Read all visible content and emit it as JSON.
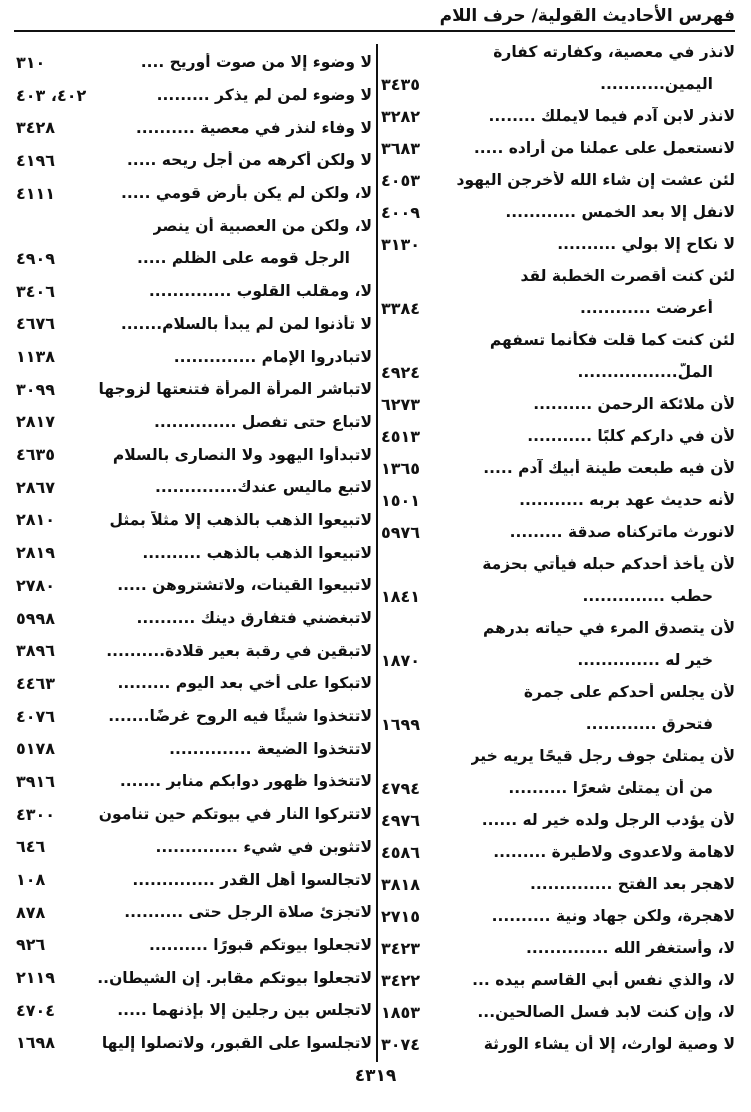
{
  "header": {
    "title": "فهرس الأحاديث القولية/ حرف اللام"
  },
  "right_column": [
    {
      "text": "لانذر في معصية، وكفارته كفارة",
      "num": ""
    },
    {
      "text": "اليمين...........",
      "num": "٣٤٣٥",
      "cont": true
    },
    {
      "text": "لانذر لابن آدم فيما لايملك ........",
      "num": "٣٢٨٢"
    },
    {
      "text": "لانستعمل على عملنا من أراده .....",
      "num": "٣٦٨٣"
    },
    {
      "text": "لئن عشت إن شاء الله لأخرجن اليهود",
      "num": "٤٠٥٣"
    },
    {
      "text": "لانفل إلا بعد الخمس ............",
      "num": "٤٠٠٩"
    },
    {
      "text": "لا نكاح إلا بولي ..........",
      "num": "٣١٣٠"
    },
    {
      "text": "لئن كنت أقصرت الخطبة لقد",
      "num": ""
    },
    {
      "text": "أعرضت ............",
      "num": "٣٣٨٤",
      "cont": true
    },
    {
      "text": "لئن كنت كما قلت فكأنما تسفهم",
      "num": ""
    },
    {
      "text": "الملّ.................",
      "num": "٤٩٢٤",
      "cont": true
    },
    {
      "text": "لأن ملائكة الرحمن ..........",
      "num": "٦٢٧٣"
    },
    {
      "text": "لأن في داركم كلبًا ...........",
      "num": "٤٥١٣"
    },
    {
      "text": "لأن فيه طبعت طينة أبيك آدم .....",
      "num": "١٣٦٥"
    },
    {
      "text": "لأنه حديث عهد بربه ...........",
      "num": "١٥٠١"
    },
    {
      "text": "لانورث ماتركناه صدقة .........",
      "num": "٥٩٧٦"
    },
    {
      "text": "لأن يأخذ أحدكم حبله فيأتي بحزمة",
      "num": ""
    },
    {
      "text": "حطب ..............",
      "num": "١٨٤١",
      "cont": true
    },
    {
      "text": "لأن يتصدق المرء في حياته بدرهم",
      "num": ""
    },
    {
      "text": "خير له ..............",
      "num": "١٨٧٠",
      "cont": true
    },
    {
      "text": "لأن يجلس أحدكم على جمرة",
      "num": ""
    },
    {
      "text": "فتحرق ............",
      "num": "١٦٩٩",
      "cont": true
    },
    {
      "text": "لأن يمتلئ جوف رجل قيحًا يريه خير",
      "num": ""
    },
    {
      "text": "من أن يمتلئ شعرًا ..........",
      "num": "٤٧٩٤",
      "cont": true
    },
    {
      "text": "لأن يؤدب الرجل ولده خير له ......",
      "num": "٤٩٧٦"
    },
    {
      "text": "لاهامة ولاعدوى ولاطيرة .........",
      "num": "٤٥٨٦"
    },
    {
      "text": "لاهجر بعد الفتح ..............",
      "num": "٣٨١٨"
    },
    {
      "text": "لاهجرة، ولكن جهاد ونية ..........",
      "num": "٢٧١٥"
    },
    {
      "text": "لا، وأستغفر الله ..............",
      "num": "٣٤٢٣"
    },
    {
      "text": "لا، والذي نفس أبي القاسم بيده ...",
      "num": "٣٤٢٢"
    },
    {
      "text": "لا، وإن كنت لابد فسل الصالحين...",
      "num": "١٨٥٣"
    },
    {
      "text": "لا وصية لوارث، إلا أن يشاء الورثة",
      "num": "٣٠٧٤"
    }
  ],
  "left_column": [
    {
      "text": "لا وضوء إلا من صوت أوريح ....",
      "num": "٣١٠"
    },
    {
      "text": "لا وضوء لمن لم يذكر .........",
      "num": "٤٠٢، ٤٠٣"
    },
    {
      "text": "لا وفاء لنذر في معصية ..........",
      "num": "٣٤٢٨"
    },
    {
      "text": "لا ولكن أكرهه من أجل ريحه .....",
      "num": "٤١٩٦"
    },
    {
      "text": "لا، ولكن لم يكن بأرض قومي .....",
      "num": "٤١١١"
    },
    {
      "text": "لا، ولكن من العصبية أن ينصر",
      "num": ""
    },
    {
      "text": "الرجل قومه على الظلم .....",
      "num": "٤٩٠٩",
      "cont": true
    },
    {
      "text": "لا، ومقلب القلوب ..............",
      "num": "٣٤٠٦"
    },
    {
      "text": "لا تأذنوا لمن لم يبدأ بالسلام.......",
      "num": "٤٦٧٦"
    },
    {
      "text": "لاتبادروا الإمام ..............",
      "num": "١١٣٨"
    },
    {
      "text": "لاتباشر المرأة المرأة فتنعتها لزوجها",
      "num": "٣٠٩٩"
    },
    {
      "text": "لاتباع حتى تفصل ..............",
      "num": "٢٨١٧"
    },
    {
      "text": "لاتبدأوا اليهود ولا النصارى بالسلام",
      "num": "٤٦٣٥"
    },
    {
      "text": "لاتبع ماليس عندك..............",
      "num": "٢٨٦٧"
    },
    {
      "text": "لاتبيعوا الذهب بالذهب إلا مثلاً بمثل",
      "num": "٢٨١٠"
    },
    {
      "text": "لاتبيعوا الذهب بالذهب ..........",
      "num": "٢٨١٩"
    },
    {
      "text": "لاتبيعوا القينات، ولاتشتروهن .....",
      "num": "٢٧٨٠"
    },
    {
      "text": "لاتبغضني فتفارق دينك ..........",
      "num": "٥٩٩٨"
    },
    {
      "text": "لاتبقين في رقبة بعير قلادة..........",
      "num": "٣٨٩٦"
    },
    {
      "text": "لاتبكوا على أخي بعد اليوم .........",
      "num": "٤٤٦٣"
    },
    {
      "text": "لاتتخذوا شيئًا فيه الروح غرضًا.......",
      "num": "٤٠٧٦"
    },
    {
      "text": "لاتتخذوا الضيعة ..............",
      "num": "٥١٧٨"
    },
    {
      "text": "لاتتخذوا ظهور دوابكم منابر .......",
      "num": "٣٩١٦"
    },
    {
      "text": "لاتتركوا النار في بيوتكم حين تنامون",
      "num": "٤٣٠٠"
    },
    {
      "text": "لاتثوبن في شيء ..............",
      "num": "٦٤٦"
    },
    {
      "text": "لاتجالسوا أهل القدر ..............",
      "num": "١٠٨"
    },
    {
      "text": "لاتجزئ صلاة الرجل حتى ..........",
      "num": "٨٧٨"
    },
    {
      "text": "لاتجعلوا بيوتكم قبورًا ..........",
      "num": "٩٢٦"
    },
    {
      "text": "لاتجعلوا بيوتكم مقابر. إن الشيطان..",
      "num": "٢١١٩"
    },
    {
      "text": "لاتجلس بين رجلين إلا بإذنهما .....",
      "num": "٤٧٠٤"
    },
    {
      "text": "لاتجلسوا على القبور، ولاتصلوا إليها",
      "num": "١٦٩٨"
    }
  ],
  "footer": {
    "page_number": "٤٣١٩"
  }
}
